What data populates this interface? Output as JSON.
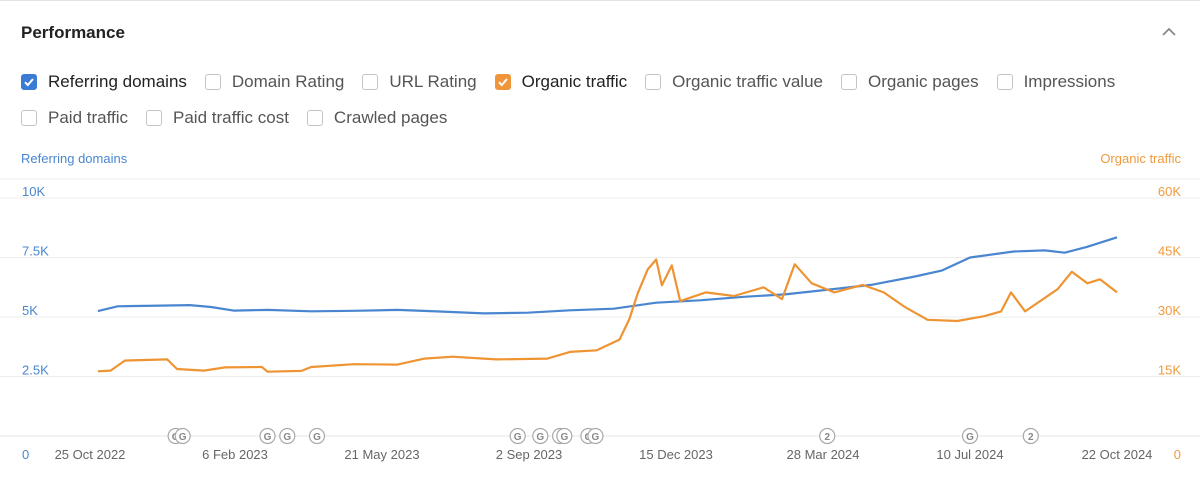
{
  "panel": {
    "title": "Performance"
  },
  "options": [
    {
      "label": "Referring domains",
      "checked": true,
      "color": "#3a7bd5"
    },
    {
      "label": "Domain Rating",
      "checked": false
    },
    {
      "label": "URL Rating",
      "checked": false
    },
    {
      "label": "Organic traffic",
      "checked": true,
      "color": "#f0953a"
    },
    {
      "label": "Organic traffic value",
      "checked": false
    },
    {
      "label": "Organic pages",
      "checked": false
    },
    {
      "label": "Impressions",
      "checked": false
    },
    {
      "label": "Paid traffic",
      "checked": false
    },
    {
      "label": "Paid traffic cost",
      "checked": false
    },
    {
      "label": "Crawled pages",
      "checked": false
    }
  ],
  "chart_data": {
    "type": "line",
    "left_axis_title": "Referring domains",
    "right_axis_title": "Organic traffic",
    "x_ticks": [
      "25 Oct 2022",
      "6 Feb 2023",
      "21 May 2023",
      "2 Sep 2023",
      "15 Dec 2023",
      "28 Mar 2024",
      "10 Jul 2024",
      "22 Oct 2024"
    ],
    "x_range": [
      "2022-10-25",
      "2024-10-22"
    ],
    "left_ticks": [
      "0",
      "2.5K",
      "5K",
      "7.5K",
      "10K"
    ],
    "right_ticks": [
      "0",
      "15K",
      "30K",
      "45K",
      "60K"
    ],
    "left_ylim": [
      0,
      10000
    ],
    "right_ylim": [
      0,
      60000
    ],
    "grid": true,
    "series": [
      {
        "name": "Referring domains",
        "axis": "left",
        "color": "#4a86d0",
        "points": [
          [
            "2022-11-01",
            5250
          ],
          [
            "2022-11-15",
            5450
          ],
          [
            "2022-12-15",
            5480
          ],
          [
            "2023-01-05",
            5500
          ],
          [
            "2023-01-20",
            5420
          ],
          [
            "2023-02-05",
            5270
          ],
          [
            "2023-03-01",
            5300
          ],
          [
            "2023-04-01",
            5240
          ],
          [
            "2023-05-01",
            5260
          ],
          [
            "2023-06-01",
            5300
          ],
          [
            "2023-07-01",
            5230
          ],
          [
            "2023-08-01",
            5150
          ],
          [
            "2023-09-01",
            5180
          ],
          [
            "2023-10-01",
            5280
          ],
          [
            "2023-11-01",
            5350
          ],
          [
            "2023-12-01",
            5600
          ],
          [
            "2024-01-01",
            5700
          ],
          [
            "2024-02-01",
            5850
          ],
          [
            "2024-03-01",
            5950
          ],
          [
            "2024-04-01",
            6150
          ],
          [
            "2024-05-01",
            6350
          ],
          [
            "2024-06-01",
            6700
          ],
          [
            "2024-06-20",
            6950
          ],
          [
            "2024-07-10",
            7500
          ],
          [
            "2024-08-10",
            7750
          ],
          [
            "2024-09-01",
            7800
          ],
          [
            "2024-09-15",
            7700
          ],
          [
            "2024-10-01",
            7950
          ],
          [
            "2024-10-22",
            8350
          ]
        ]
      },
      {
        "name": "Organic traffic",
        "axis": "right",
        "color": "#ee9433",
        "points": [
          [
            "2022-11-01",
            16300
          ],
          [
            "2022-11-10",
            16500
          ],
          [
            "2022-11-20",
            19000
          ],
          [
            "2022-12-20",
            19300
          ],
          [
            "2022-12-27",
            16900
          ],
          [
            "2023-01-15",
            16500
          ],
          [
            "2023-01-30",
            17300
          ],
          [
            "2023-02-25",
            17400
          ],
          [
            "2023-03-01",
            16200
          ],
          [
            "2023-03-25",
            16400
          ],
          [
            "2023-04-01",
            17400
          ],
          [
            "2023-05-01",
            18100
          ],
          [
            "2023-06-01",
            18000
          ],
          [
            "2023-06-20",
            19500
          ],
          [
            "2023-07-10",
            20000
          ],
          [
            "2023-08-01",
            19500
          ],
          [
            "2023-08-10",
            19300
          ],
          [
            "2023-09-15",
            19500
          ],
          [
            "2023-10-01",
            21200
          ],
          [
            "2023-10-20",
            21600
          ],
          [
            "2023-11-05",
            24300
          ],
          [
            "2023-11-12",
            29500
          ],
          [
            "2023-11-18",
            36000
          ],
          [
            "2023-11-25",
            42000
          ],
          [
            "2023-12-01",
            44500
          ],
          [
            "2023-12-05",
            38000
          ],
          [
            "2023-12-12",
            43000
          ],
          [
            "2023-12-18",
            34000
          ],
          [
            "2024-01-05",
            36200
          ],
          [
            "2024-01-25",
            35300
          ],
          [
            "2024-02-15",
            37500
          ],
          [
            "2024-02-28",
            34500
          ],
          [
            "2024-03-08",
            43300
          ],
          [
            "2024-03-20",
            38500
          ],
          [
            "2024-04-05",
            36200
          ],
          [
            "2024-04-25",
            38100
          ],
          [
            "2024-05-10",
            36200
          ],
          [
            "2024-05-25",
            32500
          ],
          [
            "2024-06-10",
            29300
          ],
          [
            "2024-07-01",
            29000
          ],
          [
            "2024-07-20",
            30200
          ],
          [
            "2024-08-01",
            31400
          ],
          [
            "2024-08-08",
            36200
          ],
          [
            "2024-08-18",
            31400
          ],
          [
            "2024-09-10",
            37000
          ],
          [
            "2024-09-20",
            41400
          ],
          [
            "2024-10-01",
            38500
          ],
          [
            "2024-10-10",
            39500
          ],
          [
            "2024-10-22",
            36200
          ]
        ]
      }
    ],
    "events": [
      {
        "date": "2022-12-26",
        "label": "G"
      },
      {
        "date": "2022-12-31",
        "label": "G"
      },
      {
        "date": "2023-03-01",
        "label": "G"
      },
      {
        "date": "2023-03-15",
        "label": "G"
      },
      {
        "date": "2023-04-05",
        "label": "G"
      },
      {
        "date": "2023-08-25",
        "label": "G"
      },
      {
        "date": "2023-09-10",
        "label": "G"
      },
      {
        "date": "2023-09-24",
        "label": "G"
      },
      {
        "date": "2023-09-27",
        "label": "G"
      },
      {
        "date": "2023-10-14",
        "label": "G"
      },
      {
        "date": "2023-10-19",
        "label": "G"
      },
      {
        "date": "2024-03-31",
        "label": "2"
      },
      {
        "date": "2024-07-10",
        "label": "G"
      },
      {
        "date": "2024-08-22",
        "label": "2"
      }
    ]
  }
}
